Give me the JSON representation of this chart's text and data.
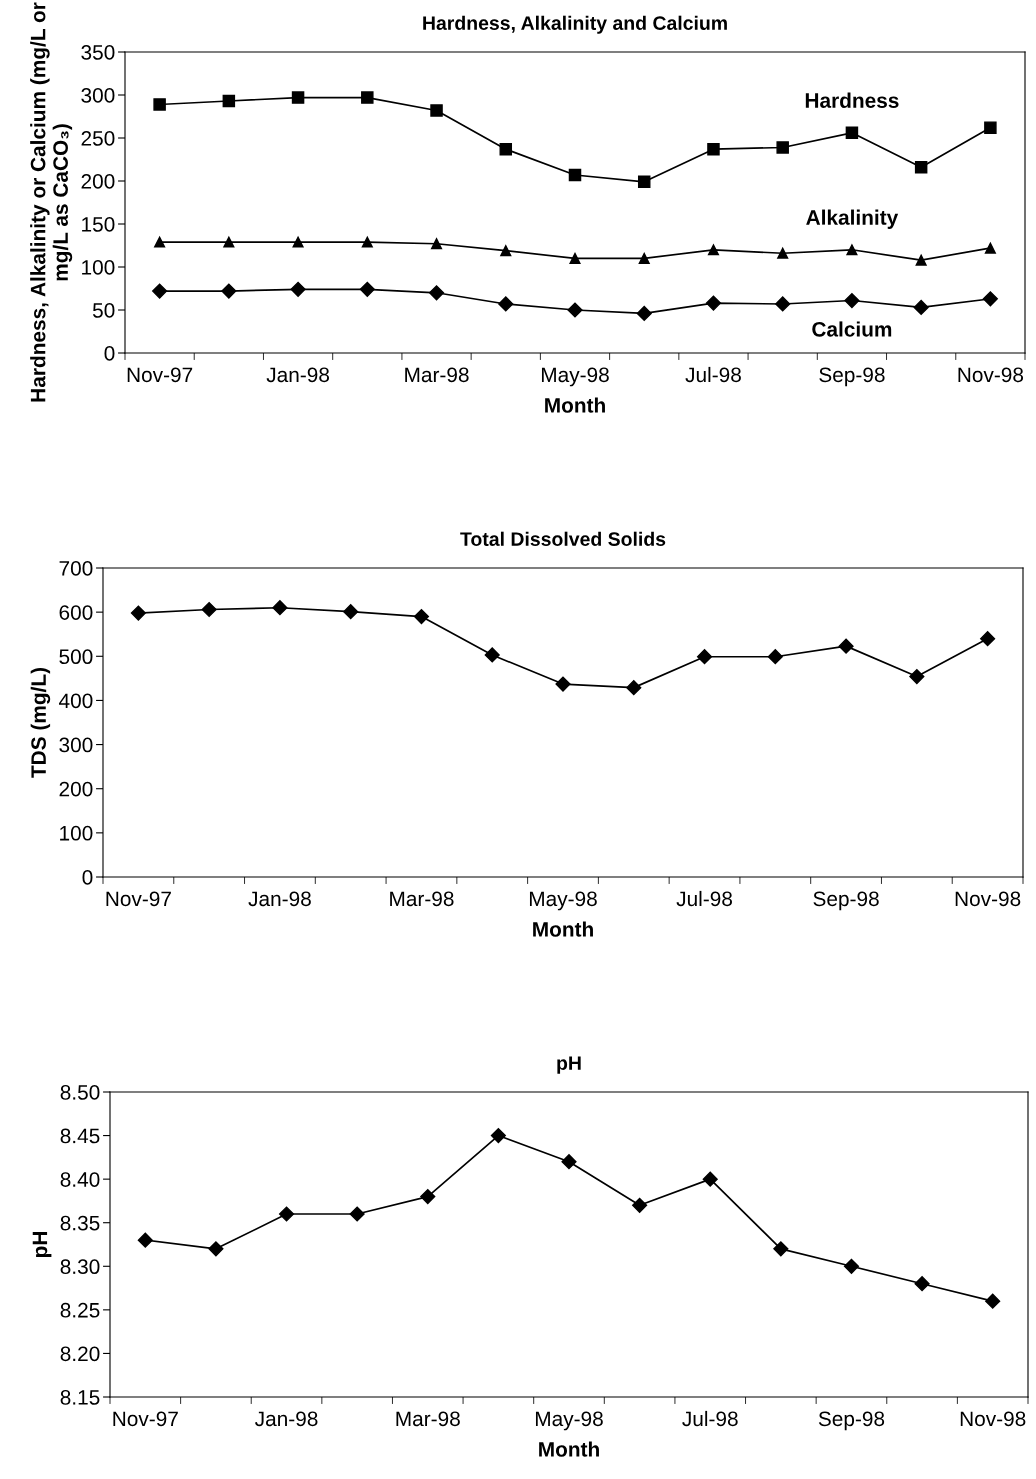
{
  "chart_data": [
    {
      "type": "line",
      "title": "Hardness, Alkalinity and Calcium",
      "xlabel": "Month",
      "ylabel": "Hardness, Alkalinity or Calcium (mg/L or mg/L as CaCO₃)",
      "categories": [
        "Nov-97",
        null,
        "Jan-98",
        null,
        "Mar-98",
        null,
        "May-98",
        null,
        "Jul-98",
        null,
        "Sep-98",
        null,
        "Nov-98"
      ],
      "series": [
        {
          "name": "Hardness",
          "color": "#000000",
          "marker": "square",
          "values": [
            289,
            293,
            297,
            297,
            282,
            237,
            207,
            199,
            237,
            239,
            256,
            216,
            262
          ]
        },
        {
          "name": "Alkalinity",
          "color": "#000000",
          "marker": "triangle",
          "values": [
            129,
            129,
            129,
            129,
            127,
            119,
            110,
            110,
            120,
            116,
            120,
            108,
            122
          ]
        },
        {
          "name": "Calcium",
          "color": "#000000",
          "marker": "diamond",
          "values": [
            72,
            72,
            74,
            74,
            70,
            57,
            50,
            46,
            58,
            57,
            61,
            53,
            63
          ]
        }
      ],
      "ylim": [
        0,
        350
      ],
      "yticks": [
        0,
        50,
        100,
        150,
        200,
        250,
        300,
        350
      ],
      "grid": false,
      "legend": false,
      "line_style": "solid"
    },
    {
      "type": "line",
      "title": "Total Dissolved Solids",
      "xlabel": "Month",
      "ylabel": "TDS (mg/L)",
      "categories": [
        "Nov-97",
        null,
        "Jan-98",
        null,
        "Mar-98",
        null,
        "May-98",
        null,
        "Jul-98",
        null,
        "Sep-98",
        null,
        "Nov-98"
      ],
      "series": [
        {
          "color": "#000000",
          "marker": "diamond",
          "values": [
            598,
            606,
            610,
            601,
            590,
            503,
            437,
            429,
            499,
            499,
            523,
            454,
            540
          ]
        }
      ],
      "ylim": [
        0,
        700
      ],
      "yticks": [
        0,
        100,
        200,
        300,
        400,
        500,
        600,
        700
      ],
      "grid": false,
      "legend": false,
      "line_style": "solid"
    },
    {
      "type": "line",
      "title": "pH",
      "xlabel": "Month",
      "ylabel": "pH",
      "categories": [
        "Nov-97",
        null,
        "Jan-98",
        null,
        "Mar-98",
        null,
        "May-98",
        null,
        "Jul-98",
        null,
        "Sep-98",
        null,
        "Nov-98"
      ],
      "series": [
        {
          "color": "#000000",
          "marker": "diamond",
          "values": [
            8.33,
            8.32,
            8.36,
            8.36,
            8.38,
            8.45,
            8.42,
            8.37,
            8.4,
            8.32,
            8.3,
            8.28,
            8.26
          ]
        }
      ],
      "ylim": [
        8.15,
        8.5
      ],
      "yticks": [
        {
          "value": 8.15,
          "label": "8.15"
        },
        {
          "value": 8.2,
          "label": "8.20"
        },
        {
          "value": 8.25,
          "label": "8.25"
        },
        {
          "value": 8.3,
          "label": "8.30"
        },
        {
          "value": 8.35,
          "label": "8.35"
        },
        {
          "value": 8.4,
          "label": "8.40"
        },
        {
          "value": 8.45,
          "label": "8.45"
        },
        {
          "value": 8.5,
          "label": "8.50"
        }
      ],
      "grid": false,
      "legend": false,
      "line_style": "solid"
    }
  ]
}
